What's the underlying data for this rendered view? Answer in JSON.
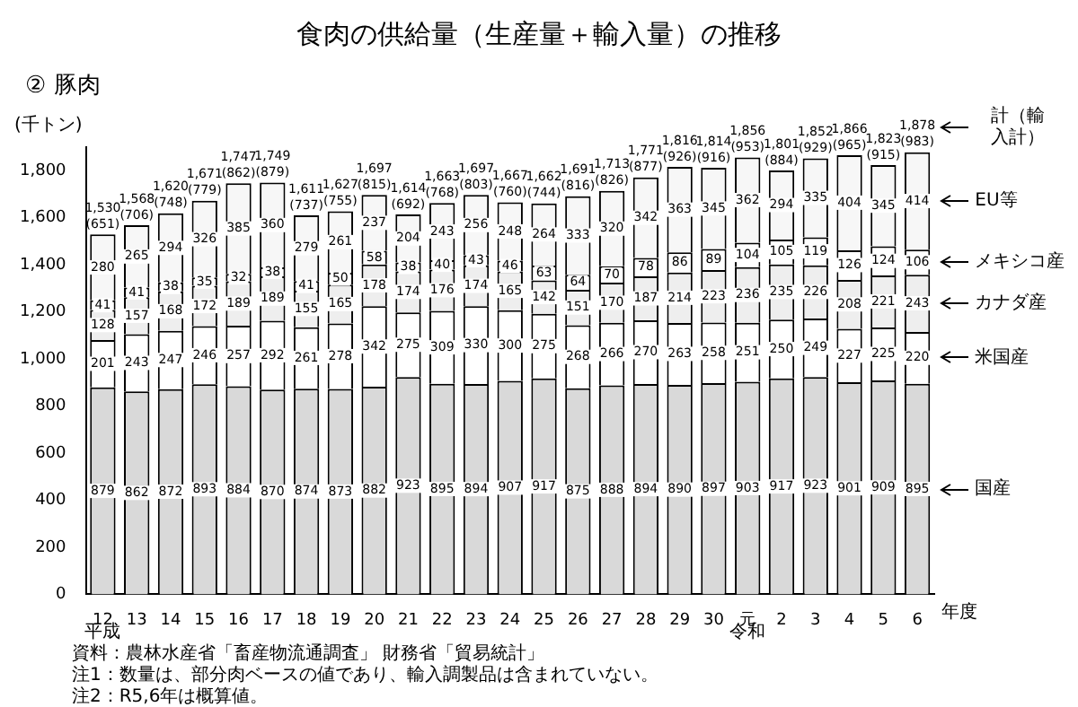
{
  "chart_data": {
    "type": "bar",
    "title": "食肉の供給量（生産量＋輸入量）の推移",
    "subtitle": "② 豚肉",
    "ylabel": "(千トン)",
    "xlabel": "年度",
    "categories": [
      "12",
      "13",
      "14",
      "15",
      "16",
      "17",
      "18",
      "19",
      "20",
      "21",
      "22",
      "23",
      "24",
      "25",
      "26",
      "27",
      "28",
      "29",
      "30",
      "元",
      "2",
      "3",
      "4",
      "5",
      "6"
    ],
    "stacked": true,
    "data_labels": true,
    "grid": false,
    "legend": false,
    "ylim": [
      0,
      1900
    ],
    "yticks": [
      0,
      {
        "value": 200,
        "label": "200"
      },
      {
        "value": 400,
        "label": "400"
      },
      {
        "value": 600,
        "label": "600"
      },
      {
        "value": 800,
        "label": "800"
      },
      {
        "value": 1000,
        "label": "1,000"
      },
      {
        "value": 1200,
        "label": "1,200"
      },
      {
        "value": 1400,
        "label": "1,400"
      },
      {
        "value": 1600,
        "label": "1,600"
      },
      {
        "value": 1800,
        "label": "1,800"
      }
    ],
    "series": [
      {
        "name": "国産",
        "color": "#d9d9d9",
        "values": [
          879,
          862,
          872,
          893,
          884,
          870,
          874,
          873,
          882,
          923,
          895,
          894,
          907,
          917,
          875,
          888,
          894,
          890,
          897,
          903,
          917,
          923,
          901,
          909,
          895
        ]
      },
      {
        "name": "米国産",
        "color": "#ffffff",
        "values": [
          201,
          243,
          247,
          246,
          257,
          292,
          261,
          278,
          342,
          275,
          309,
          330,
          300,
          275,
          268,
          266,
          270,
          263,
          258,
          251,
          250,
          249,
          227,
          225,
          220
        ]
      },
      {
        "name": "カナダ産",
        "color": "#eeeeee",
        "values": [
          128,
          157,
          168,
          172,
          189,
          189,
          155,
          165,
          178,
          174,
          176,
          174,
          165,
          142,
          151,
          170,
          187,
          214,
          223,
          236,
          235,
          226,
          208,
          221,
          243
        ]
      },
      {
        "name": "メキシコ産",
        "color": "#ffffff",
        "values": [
          41,
          41,
          38,
          35,
          32,
          38,
          41,
          50,
          58,
          38,
          40,
          43,
          46,
          63,
          64,
          70,
          78,
          86,
          89,
          104,
          105,
          119,
          126,
          124,
          106
        ]
      },
      {
        "name": "EU等",
        "color": "#f7f7f7",
        "values": [
          280,
          265,
          294,
          326,
          385,
          360,
          279,
          261,
          237,
          204,
          243,
          256,
          248,
          264,
          333,
          320,
          342,
          363,
          345,
          362,
          294,
          335,
          404,
          345,
          414
        ]
      }
    ],
    "totals": [
      "1,530\n(651)",
      "1,568\n(706)",
      "1,620\n(748)",
      "1,671\n(779)",
      "1,747\n(862)",
      "1,749\n(879)",
      "1,611\n(737)",
      "1,627\n(755)",
      "1,697\n(815)",
      "1,614\n(692)",
      "1,663\n(768)",
      "1,697\n(803)",
      "1,667\n(760)",
      "1,662\n(744)",
      "1,691\n(816)",
      "1,713\n(826)",
      "1,771\n(877)",
      "1,816\n(926)",
      "1,814\n(916)",
      "1,856\n(953)",
      "1,801\n(884)",
      "1,852\n(929)",
      "1,866\n(965)",
      "1,823\n(915)",
      "1,878\n(983)"
    ],
    "annotations": [
      "計（輸入計）",
      "平成",
      "令和",
      "資料：農林水産省「畜産物流通調査」 財務省「貿易統計」",
      "注1：数量は、部分肉ベースの値であり、輸入調製品は含まれていない。",
      "注2：R5,6年は概算値。"
    ]
  }
}
